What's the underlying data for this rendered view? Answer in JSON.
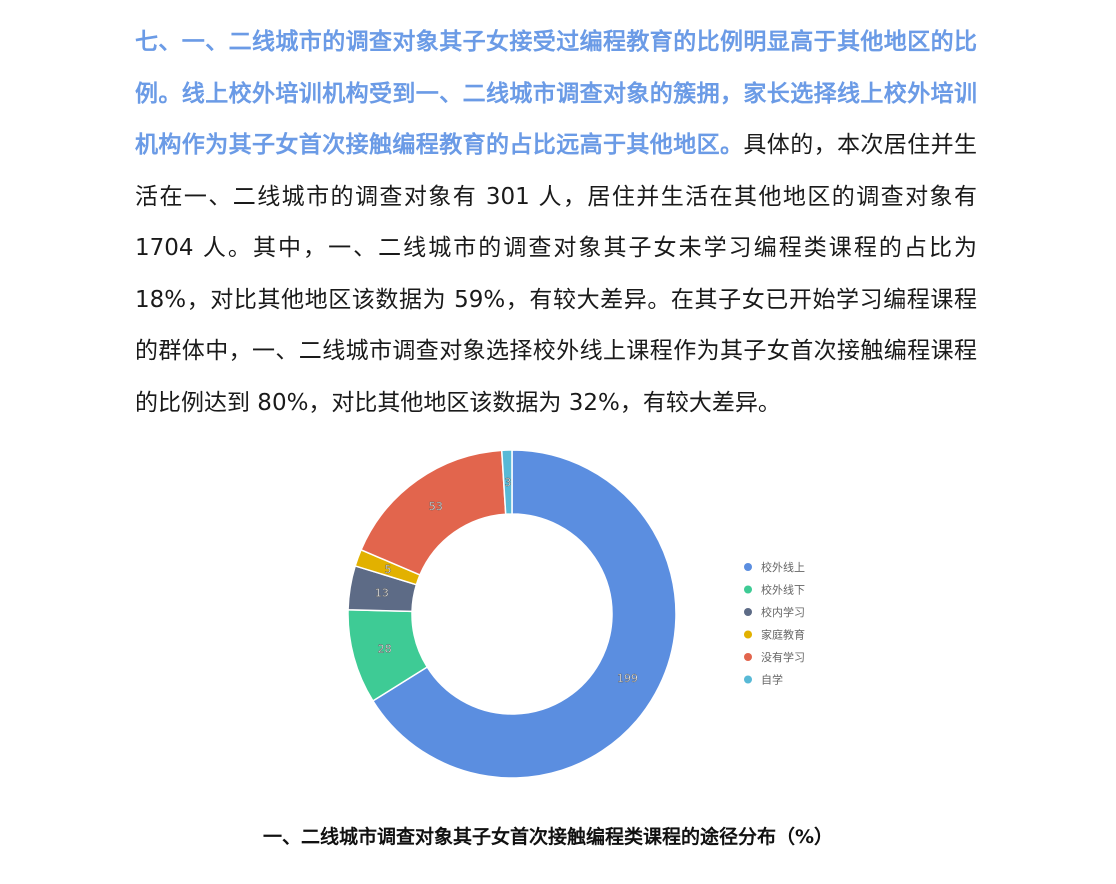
{
  "paragraph": {
    "highlight": "七、一、二线城市的调查对象其子女接受过编程教育的比例明显高于其他地区的比例。线上校外培训机构受到一、二线城市调查对象的簇拥，家长选择线上校外培训机构作为其子女首次接触编程教育的占比远高于其他地区。",
    "body": "具体的，本次居住并生活在一、二线城市的调查对象有 301 人，居住并生活在其他地区的调查对象有 1704 人。其中，一、二线城市的调查对象其子女未学习编程类课程的占比为 18%，对比其他地区该数据为 59%，有较大差异。在其子女已开始学习编程课程的群体中，一、二线城市调查对象选择校外线上课程作为其子女首次接触编程课程的比例达到 80%，对比其他地区该数据为 32%，有较大差异。",
    "highlight_color": "#6b9be6"
  },
  "chart_data": {
    "type": "pie",
    "variant": "donut",
    "title": "一、二线城市调查对象其子女首次接触编程类课程的途径分布（%）",
    "categories": [
      "校外线上",
      "校外线下",
      "校内学习",
      "家庭教育",
      "没有学习",
      "自学"
    ],
    "values": [
      199,
      28,
      13,
      5,
      53,
      3
    ],
    "colors": [
      "#5b8ee0",
      "#3ecb95",
      "#5d6b86",
      "#e2b100",
      "#e2654d",
      "#58b9d6"
    ],
    "legend_position": "right"
  }
}
